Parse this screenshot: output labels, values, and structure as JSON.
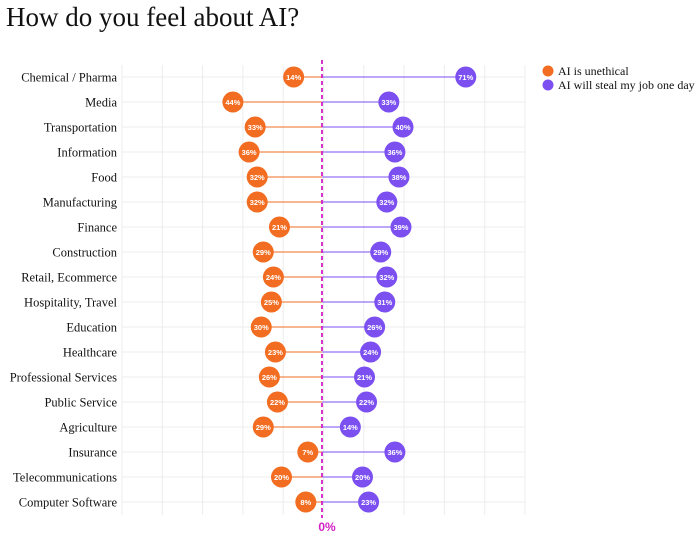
{
  "title": "How do you feel about AI?",
  "colors": {
    "unethical": "#f26d21",
    "steal_job": "#7b4ff0",
    "zero_line": "#d11fc4",
    "grid": "#ececec"
  },
  "chart_data": {
    "type": "dot-dumbbell",
    "title": "How do you feel about AI?",
    "zero_label": "0%",
    "grid": true,
    "legend_position": "top-right",
    "categories": [
      "Chemical / Pharma",
      "Media",
      "Transportation",
      "Information",
      "Food",
      "Manufacturing",
      "Finance",
      "Construction",
      "Retail, Ecommerce",
      "Hospitality, Travel",
      "Education",
      "Healthcare",
      "Professional Services",
      "Public Service",
      "Agriculture",
      "Insurance",
      "Telecommunications",
      "Computer Software"
    ],
    "series": [
      {
        "name": "AI is unethical",
        "direction": "left",
        "values": [
          14,
          44,
          33,
          36,
          32,
          32,
          21,
          29,
          24,
          25,
          30,
          23,
          26,
          22,
          29,
          7,
          20,
          8
        ]
      },
      {
        "name": "AI will steal my job one day",
        "direction": "right",
        "values": [
          71,
          33,
          40,
          36,
          38,
          32,
          39,
          29,
          32,
          31,
          26,
          24,
          21,
          22,
          14,
          36,
          20,
          23
        ]
      }
    ]
  }
}
